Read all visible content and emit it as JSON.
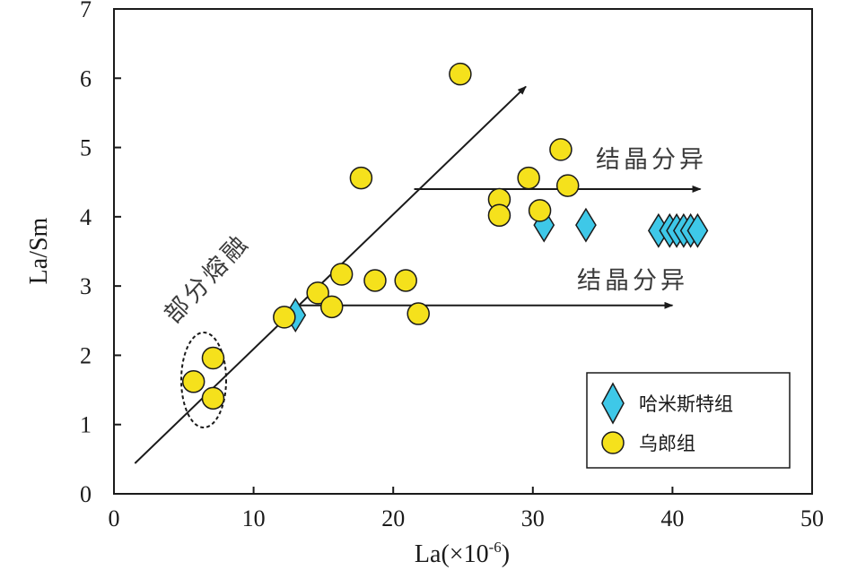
{
  "chart_data": {
    "type": "scatter",
    "xlabel": "La(×10",
    "xlabel_sup": "-6",
    "xlabel_close": ")",
    "ylabel": "La/Sm",
    "xlim": [
      0,
      50
    ],
    "ylim": [
      0,
      7
    ],
    "xticks": [
      "0",
      "10",
      "20",
      "30",
      "40",
      "50"
    ],
    "yticks": [
      "0",
      "1",
      "2",
      "3",
      "4",
      "5",
      "6",
      "7"
    ],
    "series": [
      {
        "name": "哈米斯特组",
        "marker": "diamond",
        "color": "#3ec8e8",
        "points": [
          {
            "x": 13.0,
            "y": 2.58
          },
          {
            "x": 30.8,
            "y": 3.88
          },
          {
            "x": 33.8,
            "y": 3.88
          },
          {
            "x": 39.0,
            "y": 3.8
          },
          {
            "x": 39.8,
            "y": 3.8
          },
          {
            "x": 40.3,
            "y": 3.8
          },
          {
            "x": 40.8,
            "y": 3.8
          },
          {
            "x": 41.3,
            "y": 3.8
          },
          {
            "x": 41.8,
            "y": 3.8
          }
        ]
      },
      {
        "name": "乌郎组",
        "marker": "circle",
        "color": "#f5e11c",
        "points": [
          {
            "x": 5.7,
            "y": 1.62
          },
          {
            "x": 7.1,
            "y": 1.96
          },
          {
            "x": 7.1,
            "y": 1.38
          },
          {
            "x": 12.2,
            "y": 2.55
          },
          {
            "x": 14.6,
            "y": 2.9
          },
          {
            "x": 15.6,
            "y": 2.7
          },
          {
            "x": 16.3,
            "y": 3.17
          },
          {
            "x": 17.7,
            "y": 4.56
          },
          {
            "x": 18.7,
            "y": 3.08
          },
          {
            "x": 20.9,
            "y": 3.08
          },
          {
            "x": 21.8,
            "y": 2.6
          },
          {
            "x": 24.8,
            "y": 6.06
          },
          {
            "x": 27.6,
            "y": 4.25
          },
          {
            "x": 27.6,
            "y": 4.02
          },
          {
            "x": 29.7,
            "y": 4.56
          },
          {
            "x": 30.5,
            "y": 4.09
          },
          {
            "x": 32.0,
            "y": 4.97
          },
          {
            "x": 32.5,
            "y": 4.45
          }
        ]
      }
    ],
    "annotations": [
      {
        "text": "部分熔融",
        "from": [
          1.5,
          0.44
        ],
        "to": [
          29.5,
          5.88
        ]
      },
      {
        "text": "结晶分异",
        "from": [
          21.5,
          4.4
        ],
        "to": [
          42.0,
          4.4
        ]
      },
      {
        "text": "结晶分异",
        "from": [
          13.0,
          2.72
        ],
        "to": [
          40.0,
          2.72
        ]
      }
    ],
    "legend_position": "bottom-right"
  }
}
